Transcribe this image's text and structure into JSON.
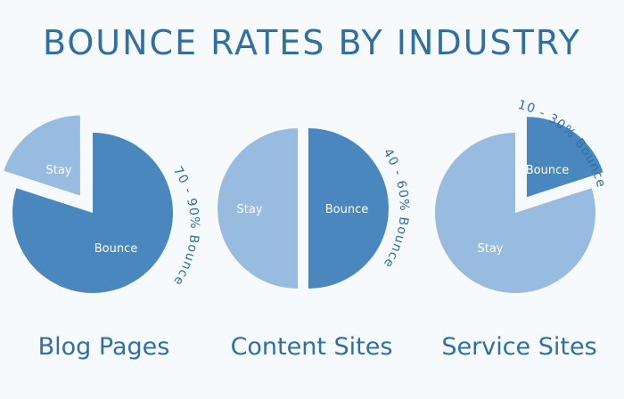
{
  "title": "BOUNCE RATES BY INDUSTRY",
  "colors": {
    "bounce": "#4a87be",
    "stay": "#98bbe0",
    "text": "#2f6fa3"
  },
  "chart_data": [
    {
      "type": "pie",
      "category": "Blog Pages",
      "slices": [
        {
          "label": "Bounce",
          "value": 80,
          "color": "#4a87be"
        },
        {
          "label": "Stay",
          "value": 20,
          "color": "#98bbe0",
          "exploded": true
        }
      ],
      "annotation": "70 - 90% Bounce"
    },
    {
      "type": "pie",
      "category": "Content Sites",
      "slices": [
        {
          "label": "Bounce",
          "value": 50,
          "color": "#4a87be",
          "exploded": true
        },
        {
          "label": "Stay",
          "value": 50,
          "color": "#98bbe0"
        }
      ],
      "annotation": "40 - 60% Bounce"
    },
    {
      "type": "pie",
      "category": "Service Sites",
      "slices": [
        {
          "label": "Bounce",
          "value": 20,
          "color": "#4a87be",
          "exploded": true
        },
        {
          "label": "Stay",
          "value": 80,
          "color": "#98bbe0"
        }
      ],
      "annotation": "10 - 30% Bounce"
    }
  ]
}
